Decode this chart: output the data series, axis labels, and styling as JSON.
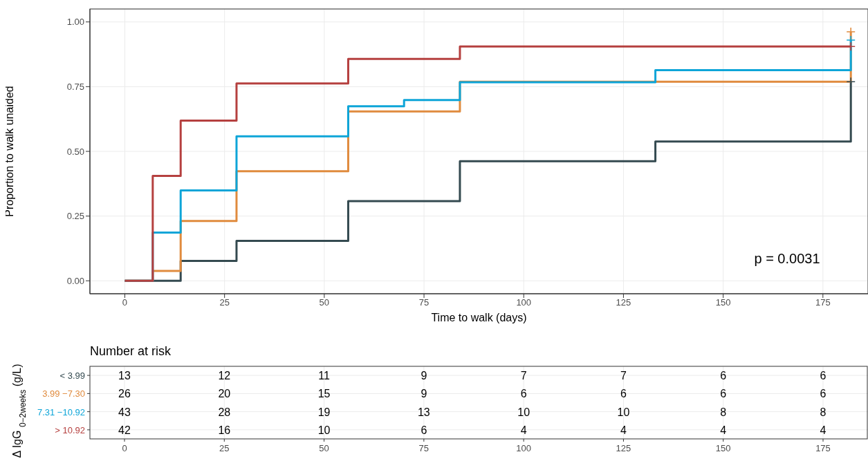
{
  "chart_data": [
    {
      "type": "step",
      "xlabel": "Time to walk (days)",
      "ylabel": "Proportion to walk unaided",
      "xlim": [
        -8.75,
        186.3
      ],
      "ylim": [
        -0.05,
        1.05
      ],
      "xticks": [
        0,
        25,
        50,
        75,
        100,
        125,
        150,
        175
      ],
      "yticks": [
        {
          "value": 0,
          "label": "0.00"
        },
        {
          "value": 0.25,
          "label": "0.25"
        },
        {
          "value": 0.5,
          "label": "0.50"
        },
        {
          "value": 0.75,
          "label": "0.75"
        },
        {
          "value": 1,
          "label": "1.00"
        }
      ],
      "grid": true,
      "line_style": "solid",
      "annotations": [
        "p = 0.0031"
      ],
      "series": [
        {
          "color": "#344a50",
          "x": [
            0,
            14,
            28,
            56,
            84,
            133,
            182
          ],
          "values": [
            0,
            0.077,
            0.154,
            0.308,
            0.462,
            0.538,
            0.769
          ]
        },
        {
          "color": "#e08b3e",
          "x": [
            0,
            7,
            14,
            28,
            56,
            84,
            182
          ],
          "values": [
            0,
            0.038,
            0.231,
            0.423,
            0.654,
            0.769,
            0.962
          ]
        },
        {
          "color": "#0ea5d8",
          "x": [
            0,
            7,
            14,
            28,
            56,
            70,
            84,
            133,
            182
          ],
          "values": [
            0,
            0.186,
            0.349,
            0.558,
            0.674,
            0.698,
            0.767,
            0.814,
            0.93
          ]
        },
        {
          "color": "#b5403f",
          "x": [
            0,
            7,
            14,
            28,
            56,
            84,
            182
          ],
          "values": [
            0,
            0.405,
            0.619,
            0.762,
            0.857,
            0.905,
            0.905
          ]
        },
        {
          "type": "scatter",
          "marker": "cross",
          "x": [
            182,
            182,
            182,
            182
          ],
          "values": [
            0.769,
            0.962,
            0.93,
            0.905
          ],
          "colors": [
            "#344a50",
            "#e08b3e",
            "#0ea5d8",
            "#b5403f"
          ]
        }
      ]
    },
    {
      "type": "heatmap",
      "title": "Number at risk",
      "ylabel": "Δ IgG $_{0−2weeks}$ (g/L)",
      "grid": true,
      "data_labels": true,
      "categories": [
        "0",
        "25",
        "50",
        "75",
        "100",
        "125",
        "150",
        "175"
      ],
      "y_categories": [
        "< 3.99",
        "3.99 −7.30",
        "7.31 −10.92",
        "> 10.92"
      ],
      "cells": [
        [
          13,
          12,
          11,
          9,
          7,
          7,
          6,
          6
        ],
        [
          26,
          20,
          15,
          9,
          6,
          6,
          6,
          6
        ],
        [
          43,
          28,
          19,
          13,
          10,
          10,
          8,
          8
        ],
        [
          42,
          16,
          10,
          6,
          4,
          4,
          4,
          4
        ]
      ]
    }
  ]
}
